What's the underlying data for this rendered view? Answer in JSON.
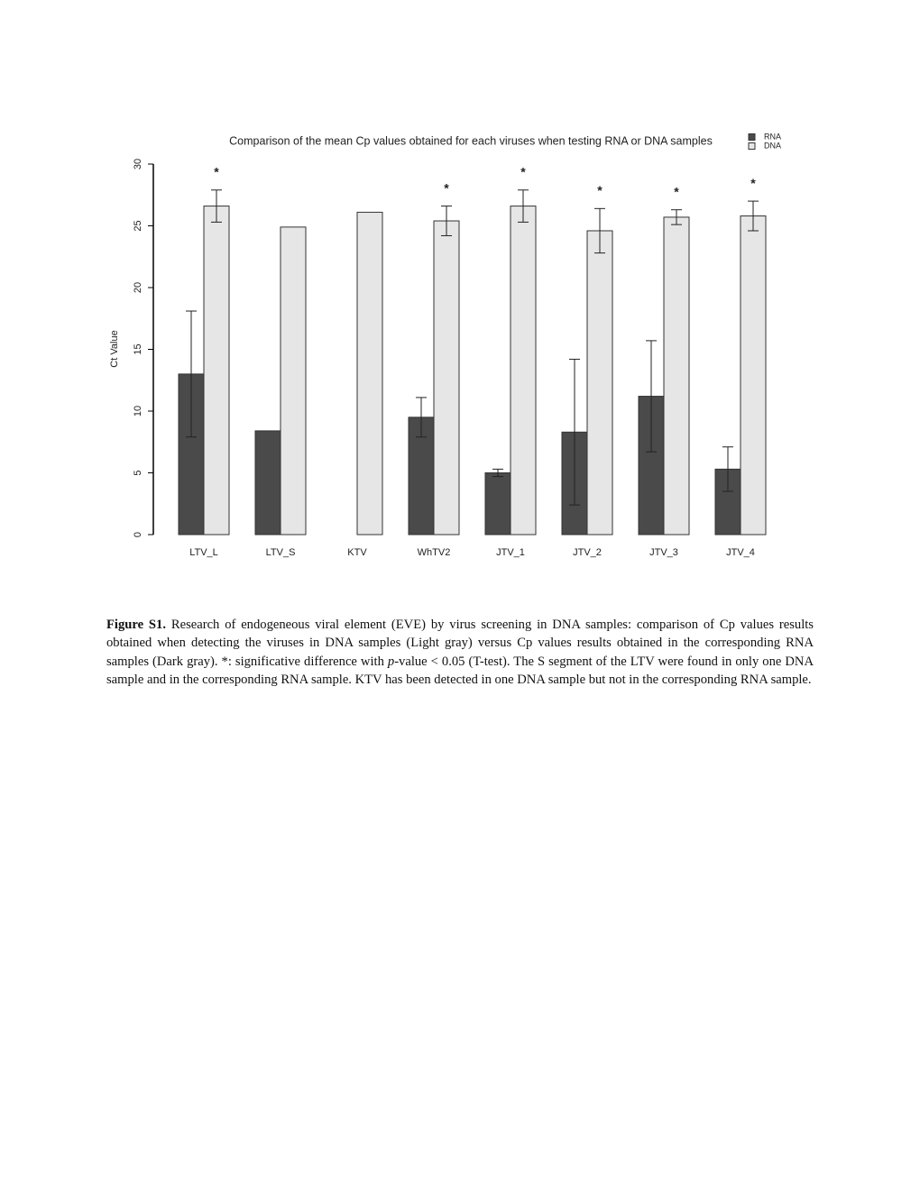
{
  "chart_data": {
    "type": "bar",
    "title": "Comparison of the mean Cp values obtained for each viruses when testing RNA or DNA samples",
    "y_label": "Ct Value",
    "categories": [
      "LTV_L",
      "LTV_S",
      "KTV",
      "WhTV2",
      "JTV_1",
      "JTV_2",
      "JTV_3",
      "JTV_4"
    ],
    "series": [
      {
        "name": "RNA",
        "color": "#4a4a4a",
        "values": [
          13.0,
          8.4,
          null,
          9.5,
          5.0,
          8.3,
          11.2,
          5.3
        ],
        "errors": [
          5.1,
          null,
          null,
          1.6,
          0.3,
          5.9,
          4.5,
          1.8
        ]
      },
      {
        "name": "DNA",
        "color": "#e6e6e6",
        "values": [
          26.6,
          24.9,
          26.1,
          25.4,
          26.6,
          24.6,
          25.7,
          25.8
        ],
        "errors": [
          1.3,
          null,
          null,
          1.2,
          1.3,
          1.8,
          0.6,
          1.2
        ]
      }
    ],
    "significance": [
      "*",
      null,
      null,
      "*",
      "*",
      "*",
      "*",
      "*"
    ],
    "ylim": [
      0,
      30
    ],
    "yticks": [
      0,
      5,
      10,
      15,
      20,
      25,
      30
    ],
    "grid": false,
    "legend": "top-right"
  },
  "caption": {
    "label": "Figure S1.",
    "text_before": "Research of endogeneous viral element (EVE) by virus screening in DNA samples: comparison of Cp values results obtained when detecting the viruses in DNA samples (Light gray) versus Cp values results obtained in the corresponding RNA samples (Dark gray). *: significative difference with",
    "italic": "p",
    "text_after": "-value < 0.05 (T-test). The S segment of the LTV were found in only one DNA sample and in the corresponding RNA sample. KTV has been detected in one DNA sample but not in the corresponding RNA sample."
  }
}
